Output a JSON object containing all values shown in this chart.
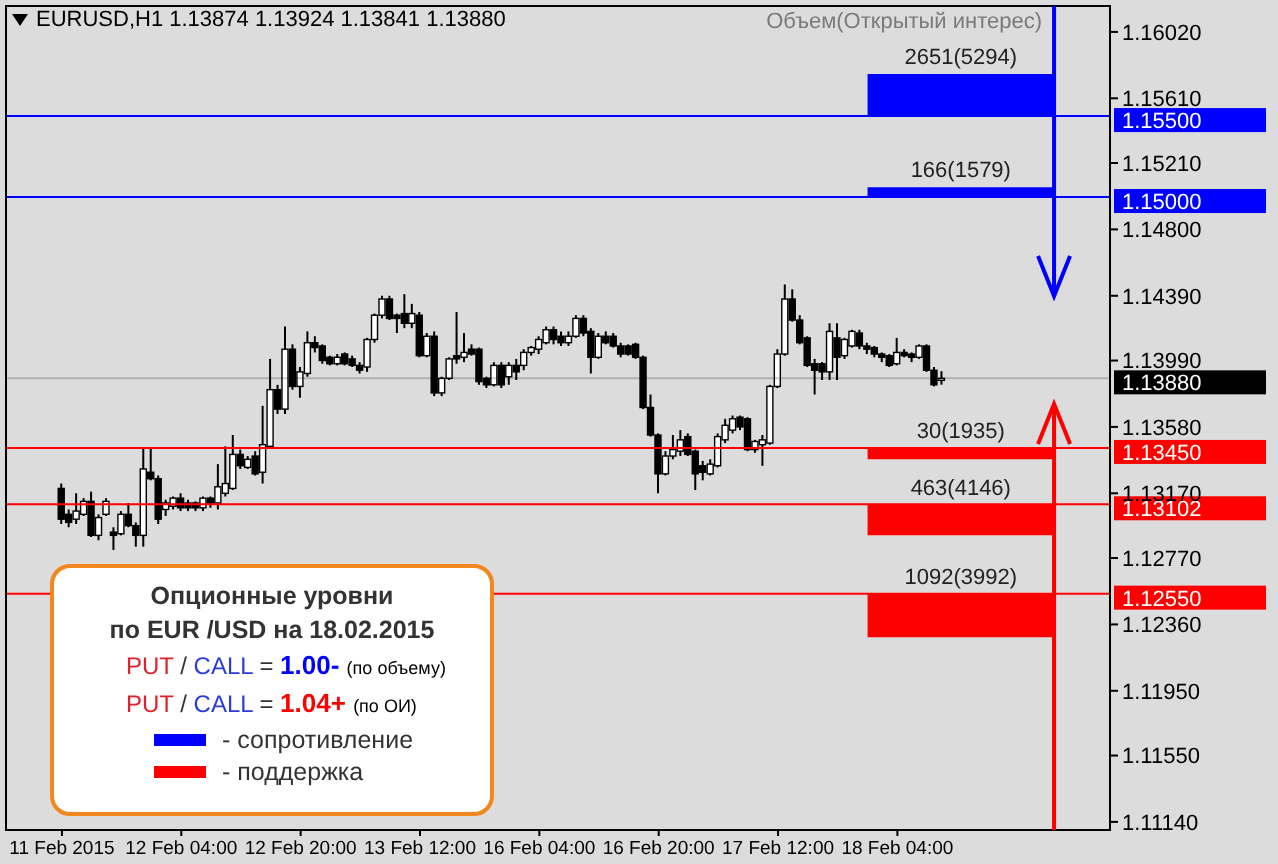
{
  "chart_data": {
    "type": "candlestick",
    "title": "EURUSD,H1 1.13874 1.13924 1.13841 1.13880",
    "subtitle": "Объем(Открытый интерес)",
    "annotations": [
      "Опционные уровни",
      "по EUR /USD на 18.02.2015",
      "PUT / CALL = 1.00- (по объему)",
      "PUT / CALL = 1.04+ (по ОИ)",
      "- сопротивление",
      "- поддержка"
    ],
    "categories": [
      "11 Feb 2015",
      null,
      null,
      null,
      null,
      null,
      null,
      null,
      null,
      null,
      null,
      null,
      null,
      null,
      null,
      null,
      "12 Feb 04:00",
      null,
      null,
      null,
      null,
      null,
      null,
      null,
      null,
      null,
      null,
      null,
      null,
      null,
      null,
      null,
      "12 Feb 20:00",
      null,
      null,
      null,
      null,
      null,
      null,
      null,
      null,
      null,
      null,
      null,
      null,
      null,
      null,
      null,
      "13 Feb 12:00",
      null,
      null,
      null,
      null,
      null,
      null,
      null,
      null,
      null,
      null,
      null,
      null,
      null,
      null,
      null,
      "16 Feb 04:00",
      null,
      null,
      null,
      null,
      null,
      null,
      null,
      null,
      null,
      null,
      null,
      null,
      null,
      null,
      null,
      "16 Feb 20:00",
      null,
      null,
      null,
      null,
      null,
      null,
      null,
      null,
      null,
      null,
      null,
      null,
      null,
      null,
      null,
      "17 Feb 12:00",
      null,
      null,
      null,
      null,
      null,
      null,
      null,
      null,
      null,
      null,
      null,
      null,
      null,
      null,
      null,
      "18 Feb 04:00",
      null,
      null,
      null,
      null,
      null,
      null,
      null,
      null,
      null,
      null,
      null,
      null,
      null,
      null,
      null,
      null,
      null,
      null,
      null,
      null,
      null,
      null,
      null,
      null,
      null,
      null,
      null,
      null
    ],
    "ohlc": [
      [
        1.132,
        1.1323,
        1.1298,
        1.1301
      ],
      [
        1.1304,
        1.1307,
        1.1296,
        1.1299
      ],
      [
        1.1301,
        1.1317,
        1.1298,
        1.1306
      ],
      [
        1.1304,
        1.1314,
        1.1303,
        1.1312
      ],
      [
        1.1312,
        1.1318,
        1.129,
        1.1291
      ],
      [
        1.1291,
        1.1304,
        1.1288,
        1.1302
      ],
      [
        1.1304,
        1.1314,
        1.1303,
        1.1312
      ],
      [
        1.1293,
        1.1296,
        1.1282,
        1.1291
      ],
      [
        1.1292,
        1.1306,
        1.1291,
        1.1304
      ],
      [
        1.1304,
        1.1311,
        1.1296,
        1.1297
      ],
      [
        1.1297,
        1.1299,
        1.1284,
        1.1291
      ],
      [
        1.1291,
        1.1345,
        1.1284,
        1.1332
      ],
      [
        1.133,
        1.1345,
        1.1325,
        1.1326
      ],
      [
        1.1326,
        1.1328,
        1.1298,
        1.1301
      ],
      [
        1.1307,
        1.1313,
        1.1303,
        1.1311
      ],
      [
        1.1309,
        1.1315,
        1.1307,
        1.1314
      ],
      [
        1.1314,
        1.1317,
        1.1306,
        1.1308
      ],
      [
        1.1311,
        1.1313,
        1.1306,
        1.1308
      ],
      [
        1.1311,
        1.1312,
        1.1306,
        1.1308
      ],
      [
        1.1308,
        1.1315,
        1.1306,
        1.1314
      ],
      [
        1.1314,
        1.1315,
        1.1308,
        1.1311
      ],
      [
        1.1311,
        1.1335,
        1.1307,
        1.1321
      ],
      [
        1.1317,
        1.1346,
        1.1315,
        1.1323
      ],
      [
        1.132,
        1.1353,
        1.1319,
        1.1341
      ],
      [
        1.1341,
        1.1344,
        1.1332,
        1.1334
      ],
      [
        1.1333,
        1.134,
        1.1332,
        1.1338
      ],
      [
        1.134,
        1.1343,
        1.1328,
        1.1329
      ],
      [
        1.133,
        1.1371,
        1.1323,
        1.1347
      ],
      [
        1.1346,
        1.14,
        1.1345,
        1.1381
      ],
      [
        1.1381,
        1.1384,
        1.1366,
        1.1369
      ],
      [
        1.1369,
        1.142,
        1.1366,
        1.1406
      ],
      [
        1.1406,
        1.1409,
        1.1381,
        1.1383
      ],
      [
        1.1383,
        1.1395,
        1.1376,
        1.1392
      ],
      [
        1.1391,
        1.1417,
        1.1389,
        1.141
      ],
      [
        1.141,
        1.1414,
        1.1404,
        1.1407
      ],
      [
        1.1408,
        1.1409,
        1.1397,
        1.1399
      ],
      [
        1.1401,
        1.1402,
        1.1396,
        1.1397
      ],
      [
        1.1397,
        1.1403,
        1.1396,
        1.1401
      ],
      [
        1.1403,
        1.1404,
        1.1396,
        1.1397
      ],
      [
        1.14,
        1.1402,
        1.1395,
        1.1396
      ],
      [
        1.1396,
        1.1398,
        1.1391,
        1.1393
      ],
      [
        1.1395,
        1.1413,
        1.1392,
        1.1412
      ],
      [
        1.1412,
        1.1428,
        1.141,
        1.1427
      ],
      [
        1.1427,
        1.1439,
        1.1425,
        1.1437
      ],
      [
        1.1437,
        1.1439,
        1.1424,
        1.1425
      ],
      [
        1.1427,
        1.1428,
        1.1416,
        1.1425
      ],
      [
        1.1428,
        1.144,
        1.1419,
        1.1422
      ],
      [
        1.1422,
        1.1434,
        1.1419,
        1.1428
      ],
      [
        1.1427,
        1.1429,
        1.1401,
        1.1402
      ],
      [
        1.1402,
        1.1416,
        1.1401,
        1.1414
      ],
      [
        1.1414,
        1.1417,
        1.1377,
        1.1379
      ],
      [
        1.1379,
        1.1389,
        1.1377,
        1.1388
      ],
      [
        1.1388,
        1.1401,
        1.1387,
        1.14
      ],
      [
        1.1402,
        1.1429,
        1.1397,
        1.14
      ],
      [
        1.1401,
        1.1416,
        1.1398,
        1.1404
      ],
      [
        1.1406,
        1.1409,
        1.1402,
        1.1403
      ],
      [
        1.1406,
        1.1407,
        1.1384,
        1.1386
      ],
      [
        1.1388,
        1.1389,
        1.1382,
        1.1384
      ],
      [
        1.1384,
        1.1398,
        1.1383,
        1.1396
      ],
      [
        1.1396,
        1.1398,
        1.1382,
        1.1384
      ],
      [
        1.1389,
        1.1398,
        1.1384,
        1.1396
      ],
      [
        1.1396,
        1.14,
        1.1387,
        1.1392
      ],
      [
        1.1396,
        1.1406,
        1.1393,
        1.1404
      ],
      [
        1.1404,
        1.1408,
        1.1402,
        1.1407
      ],
      [
        1.1406,
        1.1414,
        1.1403,
        1.1412
      ],
      [
        1.141,
        1.142,
        1.1409,
        1.1418
      ],
      [
        1.1418,
        1.142,
        1.1409,
        1.1412
      ],
      [
        1.1414,
        1.1417,
        1.1408,
        1.141
      ],
      [
        1.141,
        1.1417,
        1.1408,
        1.1414
      ],
      [
        1.1414,
        1.1427,
        1.1413,
        1.1425
      ],
      [
        1.1425,
        1.1427,
        1.1414,
        1.1416
      ],
      [
        1.1417,
        1.1419,
        1.1391,
        1.1401
      ],
      [
        1.1401,
        1.1416,
        1.14,
        1.1414
      ],
      [
        1.1414,
        1.1417,
        1.1409,
        1.141
      ],
      [
        1.1414,
        1.1416,
        1.1407,
        1.1408
      ],
      [
        1.1408,
        1.141,
        1.1401,
        1.1403
      ],
      [
        1.1408,
        1.1409,
        1.1402,
        1.1403
      ],
      [
        1.1409,
        1.141,
        1.14,
        1.1401
      ],
      [
        1.1401,
        1.1402,
        1.1369,
        1.137
      ],
      [
        1.137,
        1.1378,
        1.1352,
        1.1353
      ],
      [
        1.1353,
        1.1354,
        1.1317,
        1.1329
      ],
      [
        1.1329,
        1.1343,
        1.1328,
        1.134
      ],
      [
        1.134,
        1.1353,
        1.1338,
        1.1344
      ],
      [
        1.1343,
        1.1356,
        1.134,
        1.135
      ],
      [
        1.1352,
        1.1354,
        1.134,
        1.1341
      ],
      [
        1.1343,
        1.1344,
        1.1319,
        1.1329
      ],
      [
        1.1334,
        1.1337,
        1.1325,
        1.133
      ],
      [
        1.1329,
        1.1338,
        1.1328,
        1.1335
      ],
      [
        1.1334,
        1.1354,
        1.1333,
        1.1352
      ],
      [
        1.135,
        1.1363,
        1.1348,
        1.1359
      ],
      [
        1.1356,
        1.1365,
        1.1354,
        1.1363
      ],
      [
        1.1364,
        1.1365,
        1.1356,
        1.1358
      ],
      [
        1.1363,
        1.1364,
        1.1343,
        1.1344
      ],
      [
        1.1344,
        1.135,
        1.1342,
        1.1349
      ],
      [
        1.1347,
        1.1353,
        1.1334,
        1.135
      ],
      [
        1.1348,
        1.1384,
        1.1347,
        1.1383
      ],
      [
        1.1383,
        1.1406,
        1.1382,
        1.1403
      ],
      [
        1.1403,
        1.1446,
        1.1402,
        1.1437
      ],
      [
        1.1437,
        1.1443,
        1.1423,
        1.1424
      ],
      [
        1.1424,
        1.1427,
        1.1409,
        1.141
      ],
      [
        1.1413,
        1.1414,
        1.1395,
        1.1396
      ],
      [
        1.1397,
        1.14,
        1.1378,
        1.1393
      ],
      [
        1.1397,
        1.1398,
        1.1387,
        1.1392
      ],
      [
        1.1392,
        1.1422,
        1.1387,
        1.1417
      ],
      [
        1.1413,
        1.1422,
        1.1387,
        1.1401
      ],
      [
        1.1402,
        1.1413,
        1.14,
        1.1412
      ],
      [
        1.1408,
        1.1418,
        1.1407,
        1.1417
      ],
      [
        1.1416,
        1.1418,
        1.1406,
        1.1408
      ],
      [
        1.1408,
        1.141,
        1.1403,
        1.1406
      ],
      [
        1.1407,
        1.1408,
        1.1401,
        1.1403
      ],
      [
        1.1403,
        1.1404,
        1.1398,
        1.1401
      ],
      [
        1.1402,
        1.1403,
        1.1395,
        1.1396
      ],
      [
        1.1397,
        1.1413,
        1.1396,
        1.1404
      ],
      [
        1.1404,
        1.1406,
        1.1401,
        1.1402
      ],
      [
        1.1403,
        1.1404,
        1.1398,
        1.1401
      ],
      [
        1.1401,
        1.1409,
        1.14,
        1.1408
      ],
      [
        1.1408,
        1.1409,
        1.1392,
        1.1393
      ],
      [
        1.1393,
        1.1395,
        1.1383,
        1.1384
      ],
      [
        1.13874,
        1.13924,
        1.13841,
        1.1388
      ],
      null,
      null,
      null,
      null,
      null,
      null,
      null,
      null,
      null,
      null,
      null,
      null,
      null,
      null,
      null,
      null,
      null,
      null,
      null,
      null,
      null,
      null
    ],
    "ylim": [
      1.1109,
      1.1618
    ],
    "yticks": [
      {
        "value": 1.1602,
        "label": "1.16020"
      },
      {
        "value": 1.1561,
        "label": "1.15610"
      },
      {
        "value": 1.1521,
        "label": "1.15210"
      },
      {
        "value": 1.148,
        "label": "1.14800"
      },
      {
        "value": 1.1439,
        "label": "1.14390"
      },
      {
        "value": 1.1399,
        "label": "1.13990"
      },
      {
        "value": 1.1358,
        "label": "1.13580"
      },
      {
        "value": 1.1317,
        "label": "1.13170"
      },
      {
        "value": 1.1277,
        "label": "1.12770"
      },
      {
        "value": 1.1236,
        "label": "1.12360"
      },
      {
        "value": 1.1195,
        "label": "1.11950"
      },
      {
        "value": 1.1155,
        "label": "1.11550"
      },
      {
        "value": 1.1114,
        "label": "1.11140"
      }
    ],
    "ref_lines": [
      {
        "axis": "y",
        "value": 1.155,
        "label": "1.15500",
        "color": "#0000ff"
      },
      {
        "axis": "y",
        "value": 1.15,
        "label": "1.15000",
        "color": "#0000ff"
      },
      {
        "axis": "y",
        "value": 1.1388,
        "label": "1.13880",
        "color": "#000000"
      },
      {
        "axis": "y",
        "value": 1.1345,
        "label": "1.13450",
        "color": "#ff0000"
      },
      {
        "axis": "y",
        "value": 1.13102,
        "label": "1.13102",
        "color": "#ff0000"
      },
      {
        "axis": "y",
        "value": 1.1255,
        "label": "1.12550",
        "color": "#ff0000"
      }
    ],
    "bands": [
      {
        "axis": "y",
        "from": 1.155,
        "to": 1.1576,
        "label": "2651(5294)",
        "color": "#0000ff"
      },
      {
        "axis": "y",
        "from": 1.15,
        "to": 1.1506,
        "label": "166(1579)",
        "color": "#0000ff"
      },
      {
        "axis": "y",
        "from": 1.1338,
        "to": 1.1345,
        "label": "30(1935)",
        "color": "#ff0000"
      },
      {
        "axis": "y",
        "from": 1.1291,
        "to": 1.131,
        "label": "463(4146)",
        "color": "#ff0000"
      },
      {
        "axis": "y",
        "from": 1.1228,
        "to": 1.1255,
        "label": "1092(3992)",
        "color": "#ff0000"
      }
    ]
  }
}
